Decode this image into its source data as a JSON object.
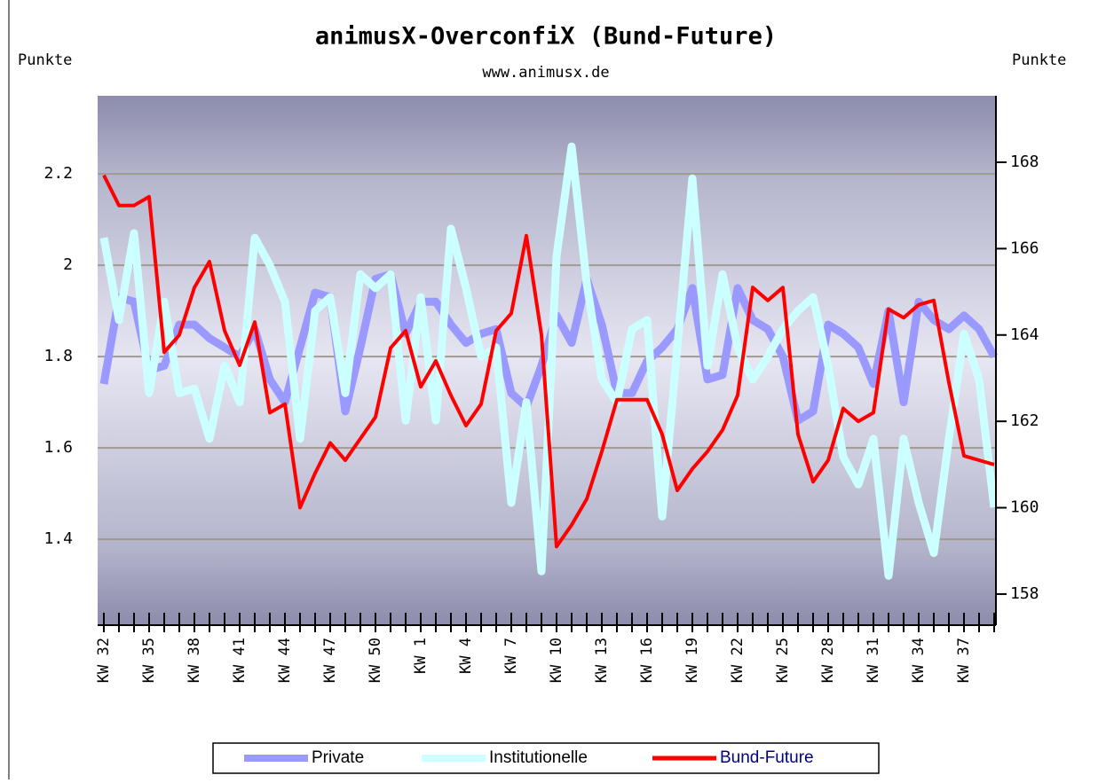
{
  "chart_data": {
    "type": "line",
    "title": "animusX-OverconfiX (Bund-Future)",
    "subtitle": "www.animusx.de",
    "y_label": "Punkte",
    "y2_label": "Punkte",
    "categories": [
      "KW 32",
      null,
      null,
      "KW 35",
      null,
      null,
      "KW 38",
      null,
      null,
      "KW 41",
      null,
      null,
      "KW 44",
      null,
      null,
      "KW 47",
      null,
      null,
      "KW 50",
      null,
      null,
      "KW 1",
      null,
      null,
      "KW 4",
      null,
      null,
      "KW 7",
      null,
      null,
      "KW 10",
      null,
      null,
      "KW 13",
      null,
      null,
      "KW 16",
      null,
      null,
      "KW 19",
      null,
      null,
      "KW 22",
      null,
      null,
      "KW 25",
      null,
      null,
      "KW 28",
      null,
      null,
      "KW 31",
      null,
      null,
      "KW 34",
      null,
      null,
      "KW 37",
      null,
      null
    ],
    "series": [
      {
        "name": "Private",
        "color": "#9999ff",
        "values": [
          1.74,
          1.93,
          1.92,
          1.77,
          1.78,
          1.87,
          1.87,
          1.84,
          1.82,
          1.8,
          1.86,
          1.75,
          1.7,
          1.82,
          1.94,
          1.93,
          1.68,
          1.82,
          1.97,
          1.98,
          1.85,
          1.92,
          1.92,
          1.87,
          1.83,
          1.85,
          1.86,
          1.72,
          1.69,
          1.78,
          1.89,
          1.83,
          1.97,
          1.87,
          1.72,
          1.72,
          1.79,
          1.82,
          1.86,
          1.95,
          1.75,
          1.76,
          1.95,
          1.88,
          1.86,
          1.8,
          1.66,
          1.68,
          1.87,
          1.85,
          1.82,
          1.74,
          1.9,
          1.7,
          1.92,
          1.88,
          1.86,
          1.89,
          1.86,
          1.8
        ]
      },
      {
        "name": "Institutionelle",
        "color": "#ccffff",
        "values": [
          2.06,
          1.88,
          2.07,
          1.72,
          1.92,
          1.72,
          1.73,
          1.62,
          1.78,
          1.7,
          2.06,
          2.0,
          1.92,
          1.62,
          1.9,
          1.93,
          1.72,
          1.98,
          1.95,
          1.98,
          1.66,
          1.93,
          1.66,
          2.08,
          1.95,
          1.8,
          1.82,
          1.48,
          1.7,
          1.33,
          2.02,
          2.26,
          1.96,
          1.75,
          1.7,
          1.86,
          1.88,
          1.45,
          1.82,
          2.19,
          1.78,
          1.98,
          1.82,
          1.75,
          1.8,
          1.86,
          1.9,
          1.93,
          1.78,
          1.58,
          1.52,
          1.62,
          1.32,
          1.62,
          1.48,
          1.37,
          1.62,
          1.85,
          1.75,
          1.47
        ]
      },
      {
        "name": "Bund-Future",
        "color": "#ff0000",
        "axis": "y2",
        "values": [
          167.7,
          167.0,
          167.0,
          167.2,
          163.6,
          164.0,
          165.1,
          165.7,
          164.1,
          163.3,
          164.3,
          162.2,
          162.4,
          160.0,
          160.8,
          161.5,
          161.1,
          161.6,
          162.1,
          163.7,
          164.1,
          162.8,
          163.4,
          162.6,
          161.9,
          162.4,
          164.1,
          164.5,
          166.3,
          164.0,
          159.1,
          159.6,
          160.2,
          161.3,
          162.5,
          162.5,
          162.5,
          161.7,
          160.4,
          160.9,
          161.3,
          161.8,
          162.6,
          165.1,
          164.8,
          165.1,
          161.7,
          160.6,
          161.1,
          162.3,
          162.0,
          162.2,
          164.6,
          164.4,
          164.7,
          164.8,
          162.9,
          161.2,
          161.1,
          161.0
        ]
      }
    ],
    "ylim": [
      1.212,
      2.371
    ],
    "yticks": [
      1.4,
      1.6,
      1.8,
      2,
      2.2
    ],
    "y2lim": [
      157.28,
      169.54
    ],
    "y2ticks": [
      158,
      160,
      162,
      164,
      166,
      168
    ],
    "grid": true,
    "legend": "bottom"
  }
}
